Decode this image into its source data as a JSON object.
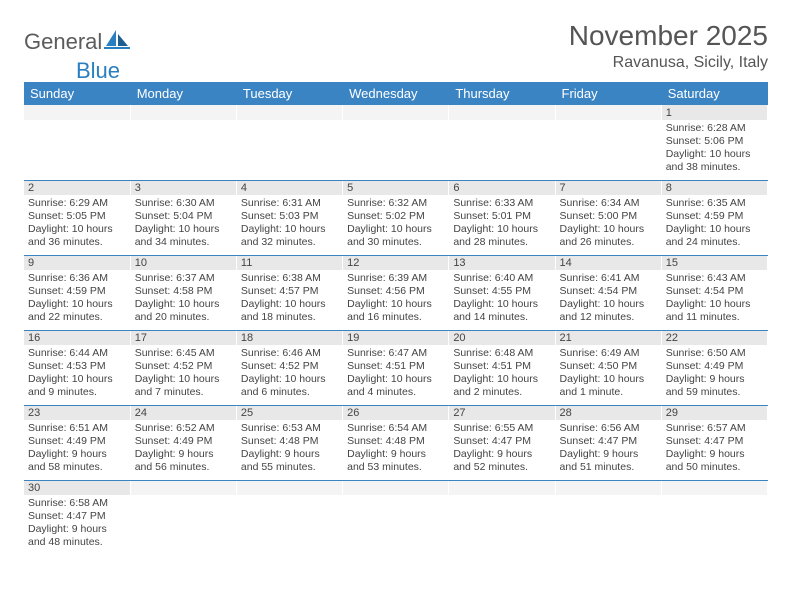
{
  "logo": {
    "part1": "General",
    "part2": "Blue"
  },
  "title": "November 2025",
  "location": "Ravanusa, Sicily, Italy",
  "colors": {
    "header_bg": "#3b84c4",
    "header_text": "#ffffff",
    "daynum_bg": "#e8e8e8",
    "empty_bg": "#f4f4f4",
    "cell_border": "#3b84c4",
    "text": "#444444",
    "title_color": "#555555",
    "logo_gray": "#5c5c5c",
    "logo_blue": "#2a7fc0"
  },
  "weekdays": [
    "Sunday",
    "Monday",
    "Tuesday",
    "Wednesday",
    "Thursday",
    "Friday",
    "Saturday"
  ],
  "weeks": [
    [
      null,
      null,
      null,
      null,
      null,
      null,
      {
        "n": "1",
        "sr": "6:28 AM",
        "ss": "5:06 PM",
        "dl": "10 hours and 38 minutes."
      }
    ],
    [
      {
        "n": "2",
        "sr": "6:29 AM",
        "ss": "5:05 PM",
        "dl": "10 hours and 36 minutes."
      },
      {
        "n": "3",
        "sr": "6:30 AM",
        "ss": "5:04 PM",
        "dl": "10 hours and 34 minutes."
      },
      {
        "n": "4",
        "sr": "6:31 AM",
        "ss": "5:03 PM",
        "dl": "10 hours and 32 minutes."
      },
      {
        "n": "5",
        "sr": "6:32 AM",
        "ss": "5:02 PM",
        "dl": "10 hours and 30 minutes."
      },
      {
        "n": "6",
        "sr": "6:33 AM",
        "ss": "5:01 PM",
        "dl": "10 hours and 28 minutes."
      },
      {
        "n": "7",
        "sr": "6:34 AM",
        "ss": "5:00 PM",
        "dl": "10 hours and 26 minutes."
      },
      {
        "n": "8",
        "sr": "6:35 AM",
        "ss": "4:59 PM",
        "dl": "10 hours and 24 minutes."
      }
    ],
    [
      {
        "n": "9",
        "sr": "6:36 AM",
        "ss": "4:59 PM",
        "dl": "10 hours and 22 minutes."
      },
      {
        "n": "10",
        "sr": "6:37 AM",
        "ss": "4:58 PM",
        "dl": "10 hours and 20 minutes."
      },
      {
        "n": "11",
        "sr": "6:38 AM",
        "ss": "4:57 PM",
        "dl": "10 hours and 18 minutes."
      },
      {
        "n": "12",
        "sr": "6:39 AM",
        "ss": "4:56 PM",
        "dl": "10 hours and 16 minutes."
      },
      {
        "n": "13",
        "sr": "6:40 AM",
        "ss": "4:55 PM",
        "dl": "10 hours and 14 minutes."
      },
      {
        "n": "14",
        "sr": "6:41 AM",
        "ss": "4:54 PM",
        "dl": "10 hours and 12 minutes."
      },
      {
        "n": "15",
        "sr": "6:43 AM",
        "ss": "4:54 PM",
        "dl": "10 hours and 11 minutes."
      }
    ],
    [
      {
        "n": "16",
        "sr": "6:44 AM",
        "ss": "4:53 PM",
        "dl": "10 hours and 9 minutes."
      },
      {
        "n": "17",
        "sr": "6:45 AM",
        "ss": "4:52 PM",
        "dl": "10 hours and 7 minutes."
      },
      {
        "n": "18",
        "sr": "6:46 AM",
        "ss": "4:52 PM",
        "dl": "10 hours and 6 minutes."
      },
      {
        "n": "19",
        "sr": "6:47 AM",
        "ss": "4:51 PM",
        "dl": "10 hours and 4 minutes."
      },
      {
        "n": "20",
        "sr": "6:48 AM",
        "ss": "4:51 PM",
        "dl": "10 hours and 2 minutes."
      },
      {
        "n": "21",
        "sr": "6:49 AM",
        "ss": "4:50 PM",
        "dl": "10 hours and 1 minute."
      },
      {
        "n": "22",
        "sr": "6:50 AM",
        "ss": "4:49 PM",
        "dl": "9 hours and 59 minutes."
      }
    ],
    [
      {
        "n": "23",
        "sr": "6:51 AM",
        "ss": "4:49 PM",
        "dl": "9 hours and 58 minutes."
      },
      {
        "n": "24",
        "sr": "6:52 AM",
        "ss": "4:49 PM",
        "dl": "9 hours and 56 minutes."
      },
      {
        "n": "25",
        "sr": "6:53 AM",
        "ss": "4:48 PM",
        "dl": "9 hours and 55 minutes."
      },
      {
        "n": "26",
        "sr": "6:54 AM",
        "ss": "4:48 PM",
        "dl": "9 hours and 53 minutes."
      },
      {
        "n": "27",
        "sr": "6:55 AM",
        "ss": "4:47 PM",
        "dl": "9 hours and 52 minutes."
      },
      {
        "n": "28",
        "sr": "6:56 AM",
        "ss": "4:47 PM",
        "dl": "9 hours and 51 minutes."
      },
      {
        "n": "29",
        "sr": "6:57 AM",
        "ss": "4:47 PM",
        "dl": "9 hours and 50 minutes."
      }
    ],
    [
      {
        "n": "30",
        "sr": "6:58 AM",
        "ss": "4:47 PM",
        "dl": "9 hours and 48 minutes."
      },
      null,
      null,
      null,
      null,
      null,
      null
    ]
  ],
  "labels": {
    "sunrise": "Sunrise:",
    "sunset": "Sunset:",
    "daylight": "Daylight:"
  }
}
